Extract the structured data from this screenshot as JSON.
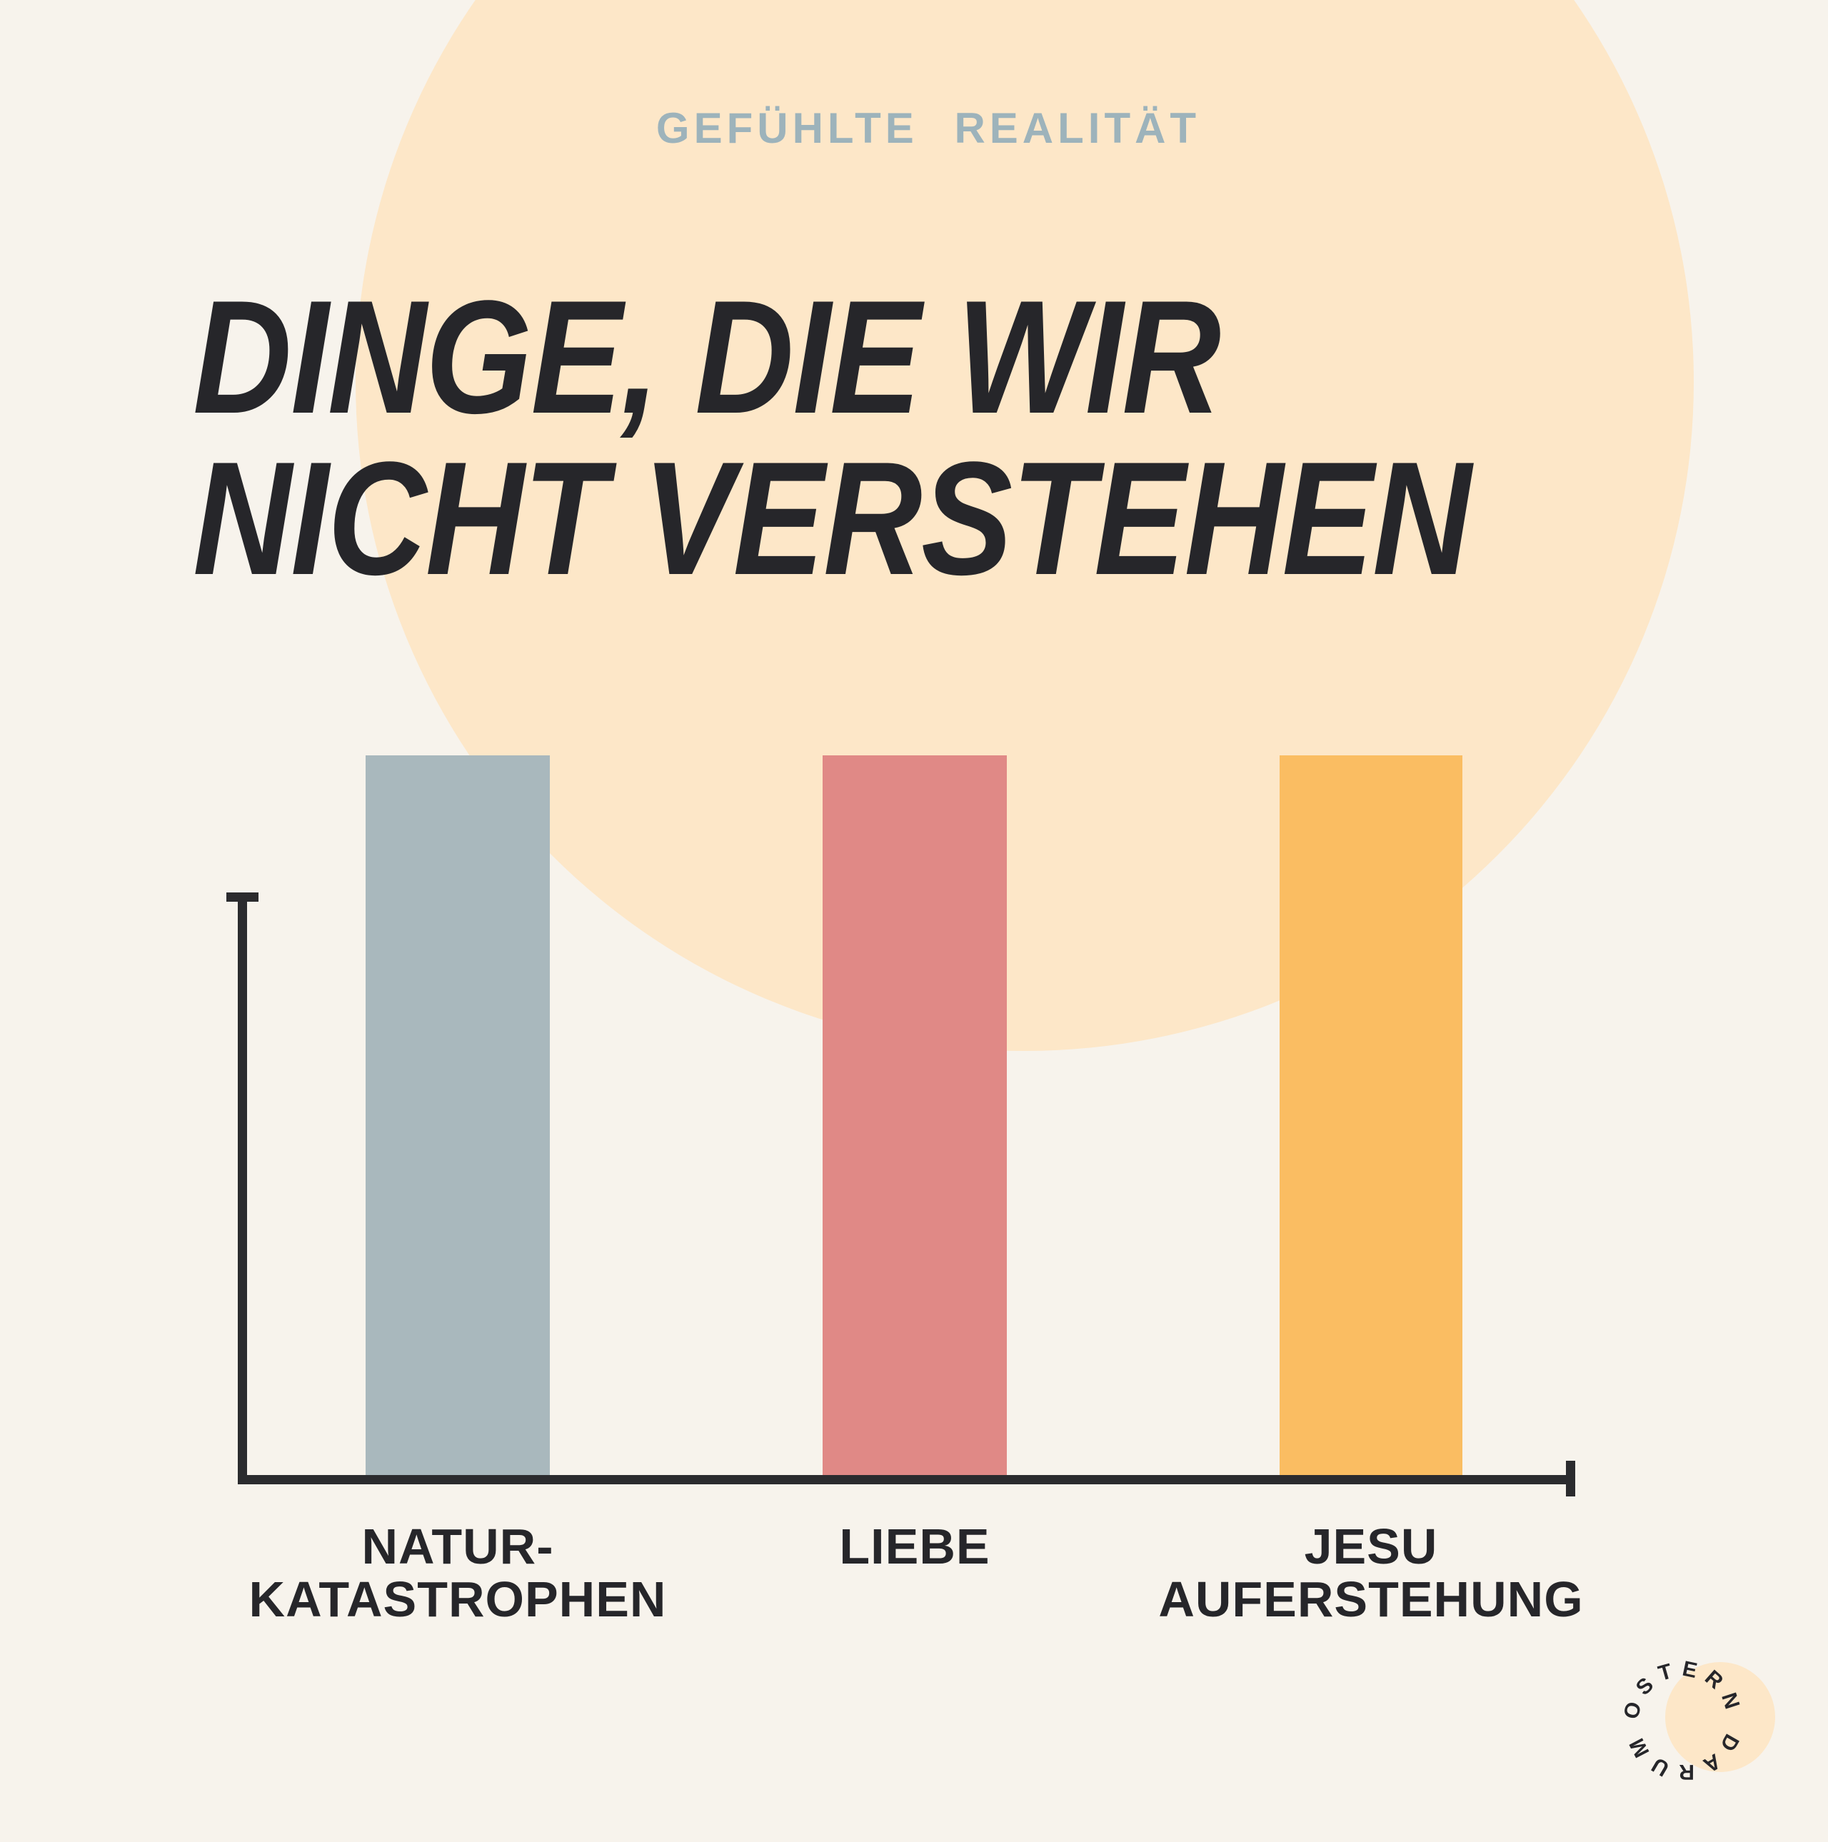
{
  "header": {
    "subtitle": "GEFÜHLTE REALITÄT",
    "title_line1": "DINGE, DIE WIR",
    "title_line2": "NICHT VERSTEHEN"
  },
  "chart_data": {
    "type": "bar",
    "title": "DINGE, DIE WIR NICHT VERSTEHEN",
    "subtitle": "GEFÜHLTE REALITÄT",
    "categories": [
      "NATUR-KATASTROPHEN",
      "LIEBE",
      "JESU AUFERSTEHUNG"
    ],
    "values": [
      1,
      1,
      1
    ],
    "ylim": [
      0,
      1
    ],
    "xlabel": "",
    "ylabel": "",
    "grid": false,
    "legend": false,
    "axis_ticks": "none",
    "bars": [
      {
        "label_lines": [
          "NATUR-",
          "KATASTROPHEN"
        ],
        "value": 1,
        "color": "#a9b8bd"
      },
      {
        "label_lines": [
          "LIEBE"
        ],
        "value": 1,
        "color": "#e08986"
      },
      {
        "label_lines": [
          "JESU",
          "AUFERSTEHUNG"
        ],
        "value": 1,
        "color": "#fabd62"
      }
    ]
  },
  "logo": {
    "circular_text": "OSTERN DARUM"
  },
  "colors": {
    "background": "#f7f3ec",
    "decorative_circle": "#fde7c8",
    "title": "#26262a",
    "subtitle": "#9db3bb",
    "axis": "#2b2b2e",
    "bar_1": "#a9b8bd",
    "bar_2": "#e08986",
    "bar_3": "#fabd62"
  }
}
